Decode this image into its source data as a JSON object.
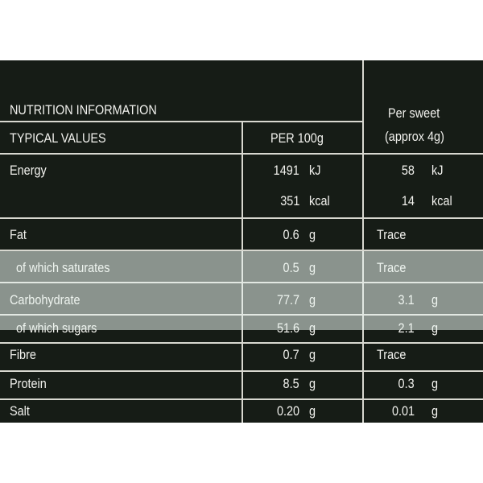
{
  "header": {
    "title": "NUTRITION INFORMATION"
  },
  "table": {
    "columns": [
      "TYPICAL VALUES",
      "PER 100g"
    ],
    "per_sweet": [
      "Per sweet",
      "(approx 4g)"
    ],
    "rows": [
      {
        "label": "Energy",
        "per100": "1491",
        "unit100": "kJ",
        "sweet": "58",
        "unit_sweet": "kJ"
      },
      {
        "per100": "351",
        "unit100": "kcal",
        "sweet": "14",
        "unit_sweet": "kcal"
      },
      {
        "label": "Fat",
        "per100": "0.6",
        "unit100": "g",
        "sweet": "Trace"
      },
      {
        "label": "of which saturates",
        "per100": "0.5",
        "unit100": "g",
        "sweet": "Trace"
      },
      {
        "label": "Carbohydrate",
        "per100": "77.7",
        "unit100": "g",
        "sweet": "3.1",
        "unit_sweet": "g"
      },
      {
        "label": "of which sugars",
        "per100": "51.6",
        "unit100": "g",
        "sweet": "2.1",
        "unit_sweet": "g"
      },
      {
        "label": "Fibre",
        "per100": "0.7",
        "unit100": "g",
        "sweet": "Trace"
      },
      {
        "label": "Protein",
        "per100": "8.5",
        "unit100": "g",
        "sweet": "0.3",
        "unit_sweet": "g"
      },
      {
        "label": "Salt",
        "per100": "0.20",
        "unit100": "g",
        "sweet": "0.01",
        "unit_sweet": "g"
      }
    ]
  }
}
